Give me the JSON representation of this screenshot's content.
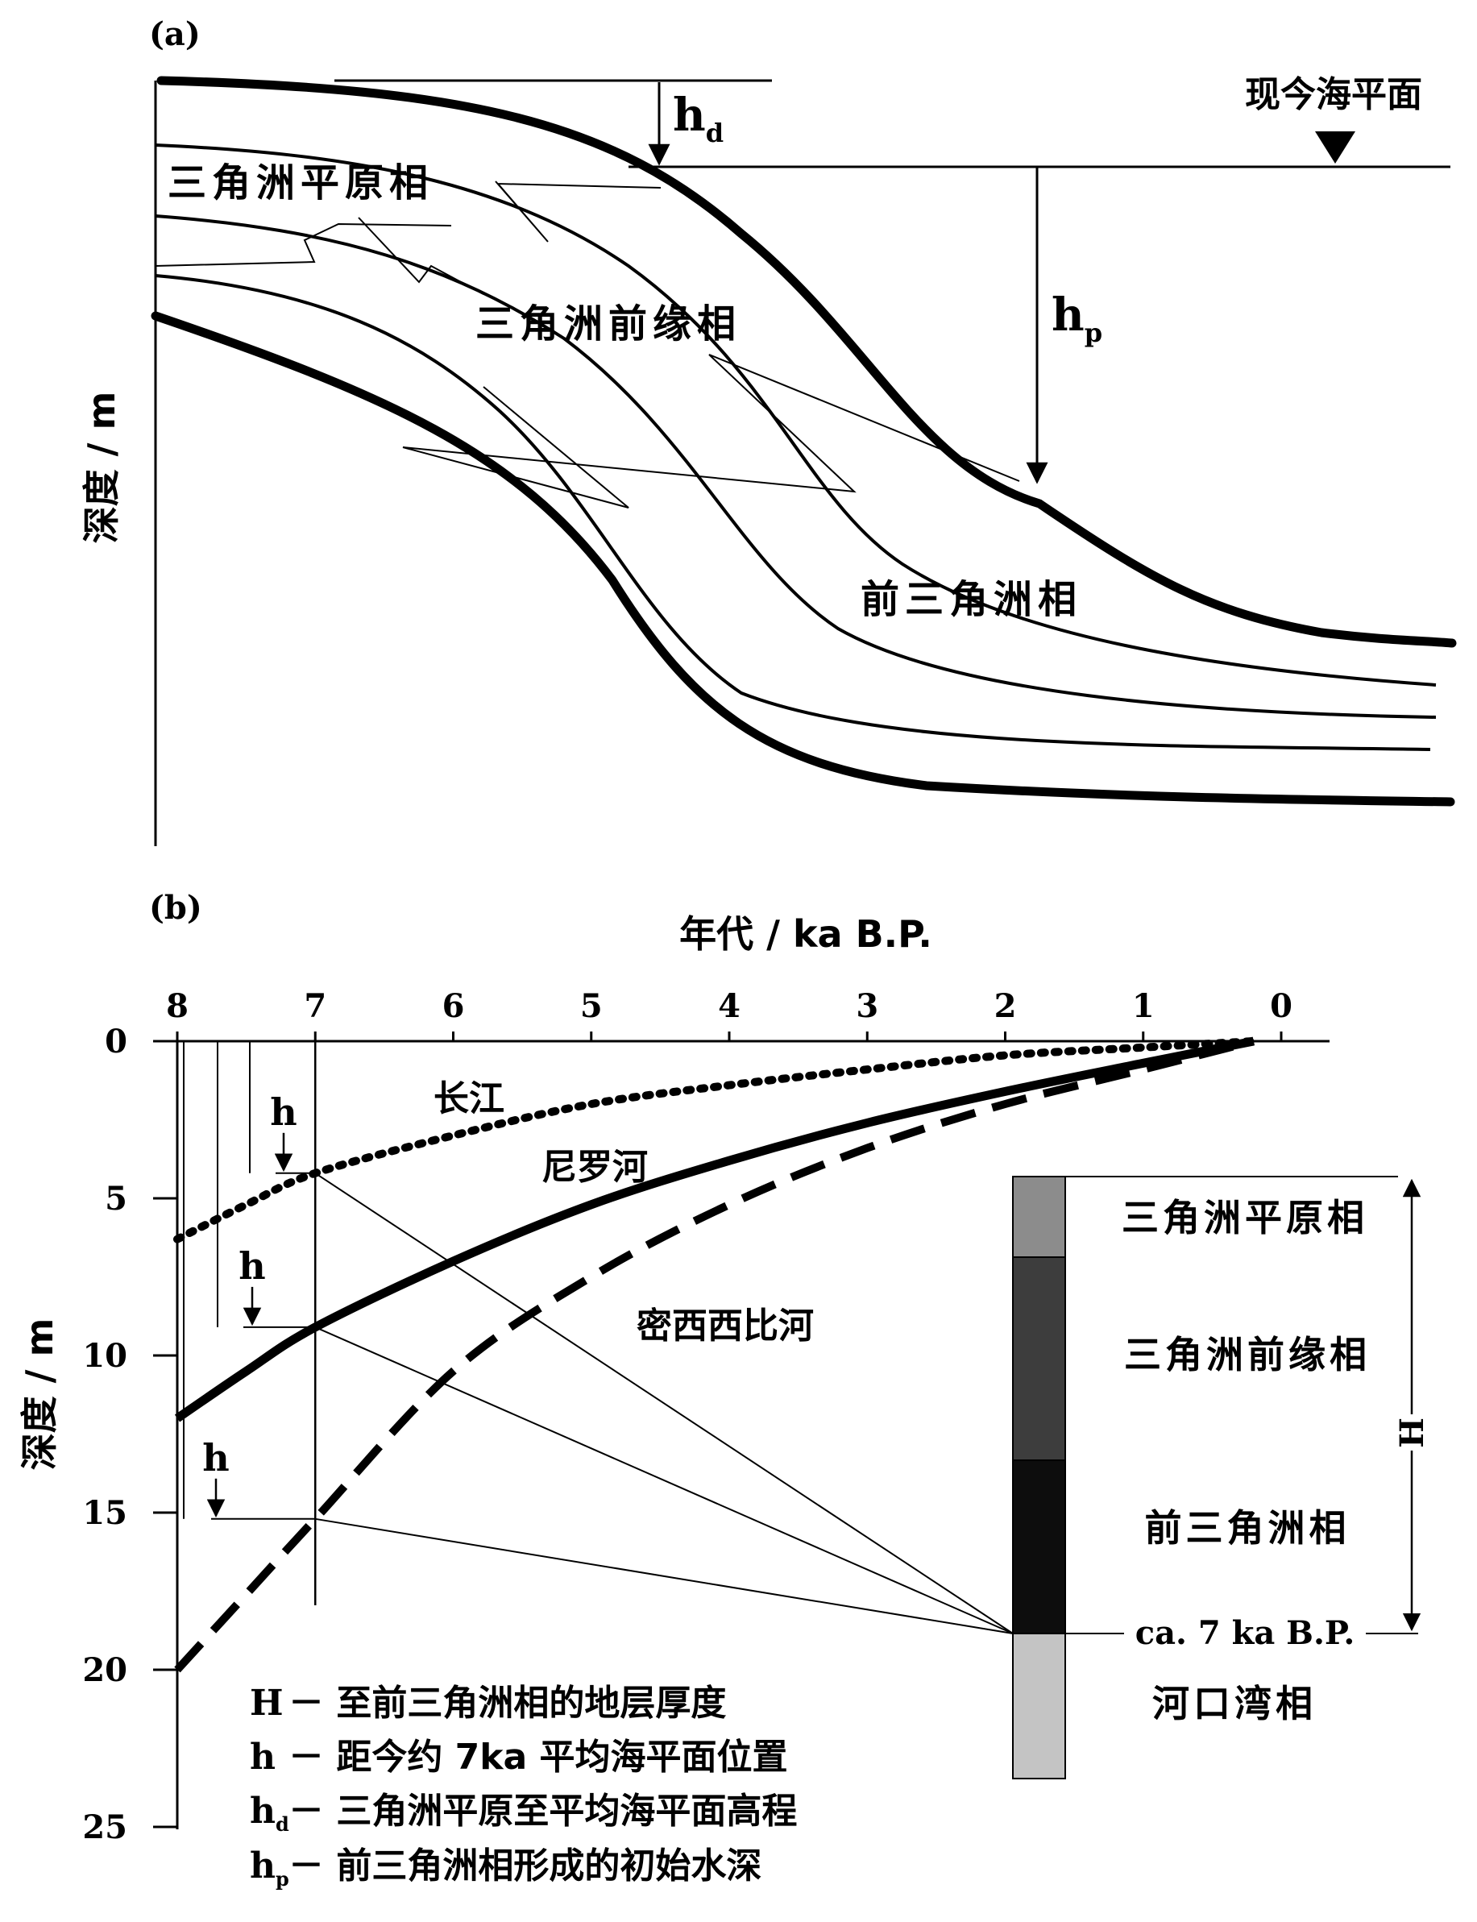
{
  "panel_a": {
    "label": "(a)",
    "y_axis_label": "深度 / m",
    "sea_level_label": "现今海平面",
    "hd_main": "h",
    "hd_sub": "d",
    "hp_main": "h",
    "hp_sub": "p",
    "facies_plain": "三角洲平原相",
    "facies_front": "三角洲前缘相",
    "facies_prodelta": "前三角洲相"
  },
  "panel_b": {
    "label": "(b)",
    "x_axis_title": "年代 / ka B.P.",
    "y_axis_label": "深度 / m",
    "x_ticks": [
      "8",
      "7",
      "6",
      "5",
      "4",
      "3",
      "2",
      "1",
      "0"
    ],
    "y_ticks": [
      "0",
      "5",
      "10",
      "15",
      "20",
      "25"
    ],
    "h_label": "h",
    "H_label": "H",
    "ca_label": "ca. 7 ka B.P.",
    "rivers": {
      "yangtze": "长江",
      "nile": "尼罗河",
      "mississippi": "密西西比河"
    },
    "column": {
      "plain": "三角洲平原相",
      "front": "三角洲前缘相",
      "prodelta": "前三角洲相",
      "estuary": "河口湾相"
    },
    "legend": {
      "H": {
        "symbol": "H",
        "sub": "",
        "text": "－ 至前三角洲相的地层厚度"
      },
      "h": {
        "symbol": "h",
        "sub": "",
        "text": "－ 距今约 7ka 平均海平面位置"
      },
      "hd": {
        "symbol": "h",
        "sub": "d",
        "text": "－ 三角洲平原至平均海平面高程"
      },
      "hp": {
        "symbol": "h",
        "sub": "p",
        "text": "－ 前三角洲相形成的初始水深"
      }
    },
    "colors": {
      "plain": "#8c8c8c",
      "front": "#3d3d3d",
      "prodelta": "#0d0d0d",
      "estuary": "#c4c4c4"
    }
  },
  "chart_data": {
    "type": "line",
    "title": "",
    "xlabel": "年代 / ka B.P.",
    "ylabel": "深度 / m",
    "xlim": [
      8,
      0
    ],
    "ylim": [
      25,
      0
    ],
    "x_ticks": [
      8,
      7,
      6,
      5,
      4,
      3,
      2,
      1,
      0
    ],
    "y_ticks": [
      0,
      5,
      10,
      15,
      20,
      25
    ],
    "series": [
      {
        "name": "长江",
        "style": "dotted",
        "points": [
          [
            8,
            6.3
          ],
          [
            7.5,
            5.2
          ],
          [
            7,
            4.2
          ],
          [
            6,
            3.0
          ],
          [
            5,
            2.0
          ],
          [
            4,
            1.4
          ],
          [
            3,
            0.9
          ],
          [
            2,
            0.45
          ],
          [
            1,
            0.2
          ],
          [
            0.2,
            0
          ]
        ]
      },
      {
        "name": "尼罗河",
        "style": "solid",
        "points": [
          [
            8,
            12
          ],
          [
            7.5,
            10.5
          ],
          [
            7,
            9.1
          ],
          [
            6,
            7.0
          ],
          [
            5,
            5.2
          ],
          [
            4,
            3.8
          ],
          [
            3,
            2.6
          ],
          [
            2,
            1.6
          ],
          [
            1,
            0.7
          ],
          [
            0.2,
            0
          ]
        ]
      },
      {
        "name": "密西西比河",
        "style": "dashed",
        "points": [
          [
            8,
            20
          ],
          [
            7.5,
            17.6
          ],
          [
            7,
            15.2
          ],
          [
            6,
            10.5
          ],
          [
            5,
            7.5
          ],
          [
            4,
            5.2
          ],
          [
            3,
            3.4
          ],
          [
            2,
            2.0
          ],
          [
            1,
            0.9
          ],
          [
            0.2,
            0
          ]
        ]
      }
    ],
    "annotations": [
      {
        "series": "长江",
        "x": 7,
        "depth": 4.2
      },
      {
        "series": "尼罗河",
        "x": 7,
        "depth": 9.1
      },
      {
        "series": "密西西比河",
        "x": 7,
        "depth": 15.2
      }
    ]
  }
}
